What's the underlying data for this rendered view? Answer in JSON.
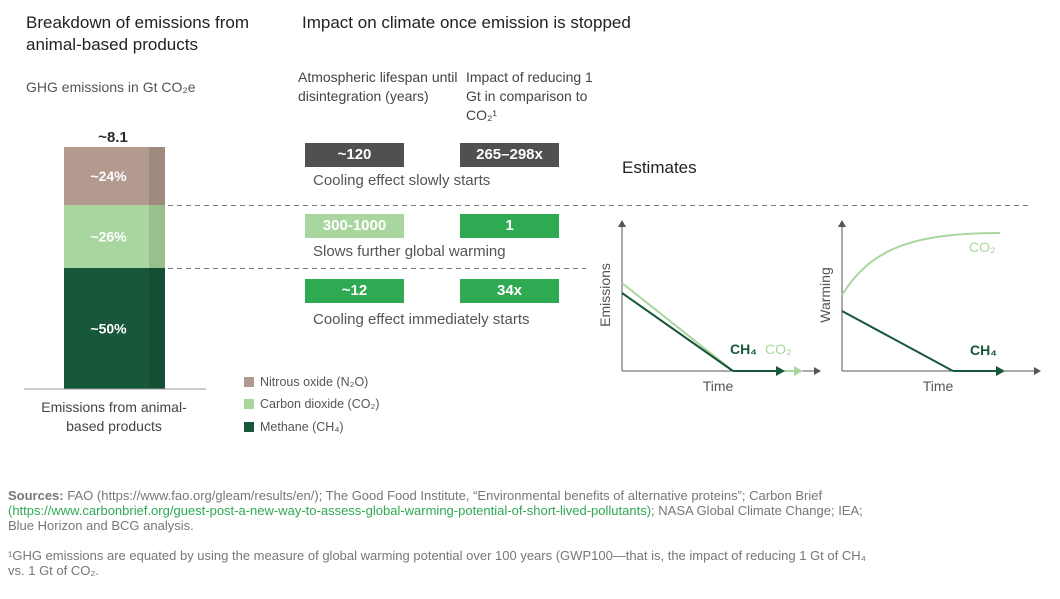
{
  "left": {
    "title": "Breakdown of emissions from animal-based products",
    "subtitle": "GHG emissions in Gt CO₂e",
    "x_label": "Emissions from animal-based products"
  },
  "middle": {
    "title": "Impact on climate once emission is stopped",
    "col1_header": "Atmospheric lifespan until disintegration (years)",
    "col2_header": "Impact of reducing 1 Gt in comparison to CO₂¹",
    "rows": [
      {
        "lifespan": "~120",
        "impact": "265–298x",
        "description": "Cooling effect slowly starts"
      },
      {
        "lifespan": "300-1000",
        "impact": "1",
        "description": "Slows further global warming"
      },
      {
        "lifespan": "~12",
        "impact": "34x",
        "description": "Cooling effect immediately starts"
      }
    ]
  },
  "estimates": {
    "title": "Estimates",
    "chart1": {
      "ylabel": "Emissions",
      "xlabel": "Time",
      "ch4_label": "CH₄",
      "co2_label": "CO₂"
    },
    "chart2": {
      "ylabel": "Warming",
      "xlabel": "Time",
      "ch4_label": "CH₄",
      "co2_label": "CO₂"
    }
  },
  "footer": {
    "sources_label": "Sources:",
    "sources_text1": "FAO (https://www.fao.org/gleam/results/en/); The Good Food Institute, “Environmental benefits of alternative proteins”; Carbon Brief",
    "sources_link": "(https://www.carbonbrief.org/guest-post-a-new-way-to-assess-global-warming-potential-of-short-lived-pollutants)",
    "sources_text2": "; NASA Global Climate Change; IEA;",
    "sources_text3": "Blue Horizon and BCG analysis.",
    "footnote1": "¹GHG emissions are equated by using the measure of global warming potential over 100 years (GWP100—that is, the impact of reducing 1 Gt of CH₄",
    "footnote2": "vs. 1 Gt of CO₂."
  },
  "colors": {
    "n2o": "#b29a8f",
    "co2": "#a9d69f",
    "ch4": "#17573a",
    "dark_box": "#505050",
    "mid_green": "#2fa952"
  },
  "chart_data": {
    "type": "bar",
    "stacked": true,
    "title": "Breakdown of emissions from animal-based products",
    "ylabel": "GHG emissions in Gt CO₂e",
    "categories": [
      "Emissions from animal-based products"
    ],
    "total": 8.1,
    "total_label": "~8.1",
    "series": [
      {
        "name": "Methane (CH₄)",
        "values": [
          50
        ],
        "label": "~50%",
        "color": "#17573a"
      },
      {
        "name": "Carbon dioxide (CO₂)",
        "values": [
          26
        ],
        "label": "~26%",
        "color": "#a9d69f"
      },
      {
        "name": "Nitrous oxide (N₂O)",
        "values": [
          24
        ],
        "label": "~24%",
        "color": "#b29a8f"
      }
    ],
    "legend": [
      "Nitrous oxide (N₂O)",
      "Carbon dioxide (CO₂)",
      "Methane (CH₄)"
    ]
  }
}
